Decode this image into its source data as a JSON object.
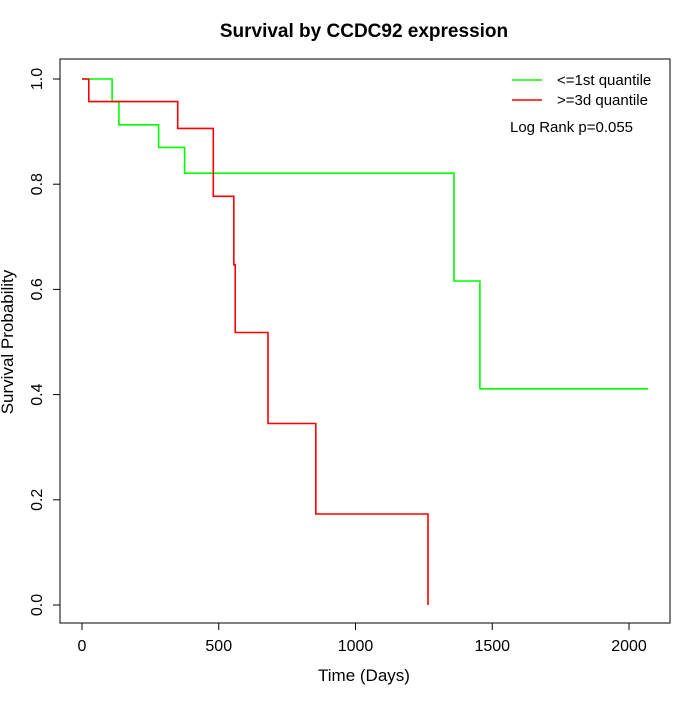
{
  "chart_data": {
    "type": "line",
    "subtype": "kaplan-meier step",
    "title": "Survival by CCDC92 expression",
    "xlabel": "Time (Days)",
    "ylabel": "Survival Probability",
    "xlim": [
      0,
      2070
    ],
    "ylim": [
      0,
      1.0
    ],
    "x_ticks": [
      0,
      500,
      1000,
      1500,
      2000
    ],
    "x_tick_labels": [
      "0",
      "500",
      "1000",
      "1500",
      "2000"
    ],
    "y_ticks": [
      0.0,
      0.2,
      0.4,
      0.6,
      0.8,
      1.0
    ],
    "y_tick_labels": [
      "0.0",
      "0.2",
      "0.4",
      "0.6",
      "0.8",
      "1.0"
    ],
    "grid": false,
    "legend_position": "top-right",
    "annotation": "Log Rank p=0.055",
    "series": [
      {
        "name": "<=1st quantile",
        "color": "#00ff00",
        "x": [
          0,
          110,
          110,
          135,
          135,
          280,
          280,
          375,
          375,
          1360,
          1360,
          1455,
          1455,
          2070
        ],
        "y": [
          1.0,
          1.0,
          0.957,
          0.957,
          0.913,
          0.913,
          0.87,
          0.87,
          0.821,
          0.821,
          0.616,
          0.616,
          0.411,
          0.411
        ]
      },
      {
        "name": ">=3d quantile",
        "color": "#ff0000",
        "x": [
          0,
          25,
          25,
          350,
          350,
          480,
          480,
          555,
          555,
          560,
          560,
          680,
          680,
          855,
          855,
          1265,
          1265
        ],
        "y": [
          1.0,
          1.0,
          0.957,
          0.957,
          0.906,
          0.906,
          0.777,
          0.777,
          0.647,
          0.647,
          0.518,
          0.518,
          0.345,
          0.345,
          0.173,
          0.173,
          0.0
        ]
      }
    ]
  }
}
